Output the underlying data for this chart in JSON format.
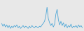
{
  "values": [
    3.5,
    3.1,
    3.4,
    3.0,
    3.3,
    2.9,
    3.2,
    2.8,
    3.1,
    2.9,
    3.2,
    3.0,
    3.3,
    2.9,
    3.1,
    2.8,
    3.0,
    3.2,
    2.9,
    3.1,
    3.0,
    2.8,
    3.1,
    2.9,
    3.2,
    3.0,
    2.9,
    3.1,
    3.0,
    2.9,
    3.1,
    3.0,
    3.3,
    3.5,
    3.8,
    4.5,
    5.8,
    4.2,
    3.6,
    3.2,
    3.5,
    3.0,
    3.4,
    4.8,
    5.5,
    4.0,
    3.3,
    3.8,
    3.2,
    3.6,
    3.0,
    3.4,
    2.9,
    3.2,
    3.0,
    3.4,
    2.9,
    3.1,
    3.0,
    3.2,
    2.9,
    3.3,
    3.0,
    3.2,
    2.9
  ],
  "line_color": "#4da6d6",
  "background_color": "#e8e8e8",
  "linewidth": 0.6,
  "figsize": [
    1.2,
    0.45
  ],
  "dpi": 100
}
